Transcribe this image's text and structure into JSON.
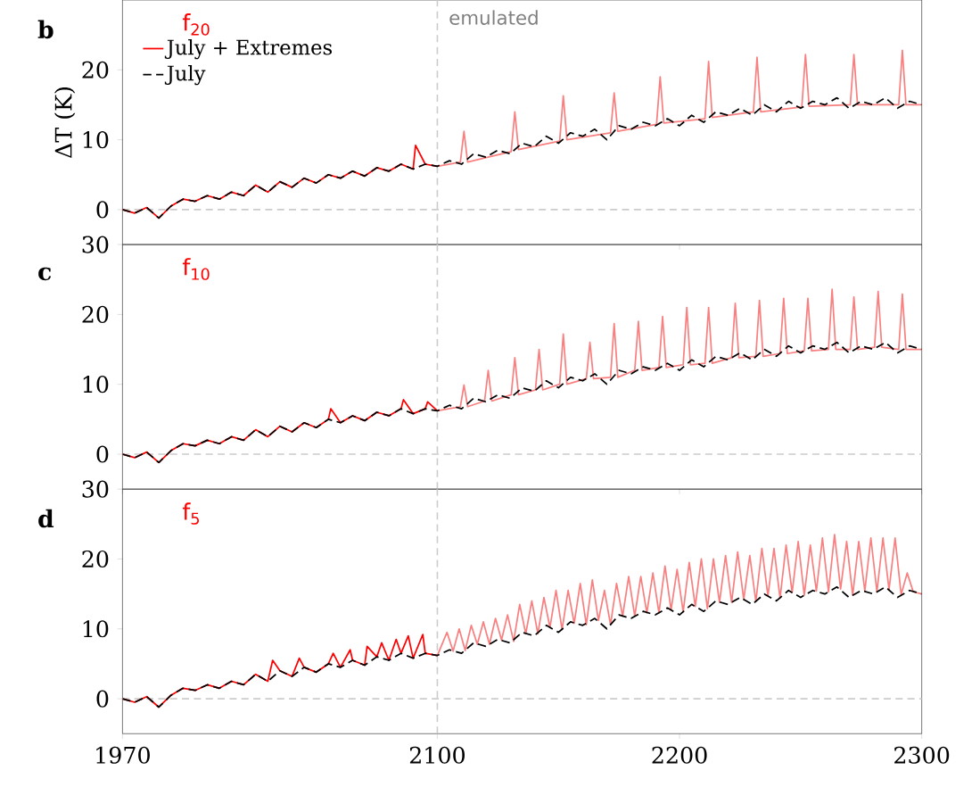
{
  "chart_data": [
    {
      "type": "line",
      "ylabel": "ΔT (K)",
      "annotations": [
        "b",
        "f$_{20}$",
        "emulated"
      ],
      "xlim": [
        1970,
        2300
      ],
      "ylim": [
        -5,
        30
      ],
      "xticks": [
        1970,
        2100,
        2200,
        2300
      ],
      "yticks": [
        0,
        10,
        20
      ],
      "tick_labels": "y",
      "legend": "top left",
      "ref_lines": [
        {
          "axis": "y",
          "value": 0,
          "color": "#cccccc",
          "line_style": "dashed"
        },
        {
          "axis": "x",
          "value": 2100,
          "color": "#cccccc",
          "line_style": "dashed"
        }
      ],
      "series": [
        {
          "name": "July + Extremes",
          "color": "#ff0000",
          "line_style": "solid",
          "x": [
            1970,
            1975,
            1980,
            1985,
            1990,
            1995,
            2000,
            2005,
            2010,
            2015,
            2020,
            2025,
            2030,
            2035,
            2040,
            2045,
            2050,
            2055,
            2060,
            2065,
            2070,
            2075,
            2080,
            2085,
            2090,
            2091,
            2095,
            2100
          ],
          "values": [
            0,
            -0.5,
            0.3,
            -1.2,
            0.5,
            1.5,
            1.2,
            2.0,
            1.5,
            2.5,
            2.0,
            3.5,
            2.5,
            4.0,
            3.2,
            4.5,
            3.8,
            5.0,
            4.5,
            5.5,
            4.8,
            6.0,
            5.5,
            6.5,
            5.8,
            9.2,
            6.5,
            6.2
          ]
        },
        {
          "color": "#f88080",
          "line_style": "solid",
          "x": [
            2100,
            2109.5,
            2111,
            2112.5,
            2130.5,
            2132,
            2133.5,
            2150.5,
            2152,
            2153.5,
            2171.5,
            2173,
            2174.5,
            2190.5,
            2192,
            2193.5,
            2210.5,
            2212,
            2213.5,
            2230.5,
            2232,
            2233.5,
            2250.5,
            2252,
            2253.5,
            2270.5,
            2272,
            2273.5,
            2290.5,
            2292,
            2293.5,
            2300
          ],
          "values": [
            6.2,
            6.8,
            11.2,
            6.8,
            8.3,
            14,
            8.6,
            9.8,
            16.3,
            10,
            11,
            16.7,
            11.2,
            12.2,
            19,
            12.4,
            13,
            21.2,
            13.2,
            14,
            21.8,
            14,
            14.7,
            22.2,
            14.8,
            15,
            22.2,
            15,
            15,
            22.8,
            15,
            15
          ]
        },
        {
          "name": "July",
          "color": "#000000",
          "line_style": "dashed",
          "x": [
            1970,
            1975,
            1980,
            1985,
            1990,
            1995,
            2000,
            2005,
            2010,
            2015,
            2020,
            2025,
            2030,
            2035,
            2040,
            2045,
            2050,
            2055,
            2060,
            2065,
            2070,
            2075,
            2080,
            2085,
            2090,
            2095,
            2100,
            2105,
            2110,
            2115,
            2120,
            2125,
            2130,
            2135,
            2140,
            2145,
            2150,
            2155,
            2160,
            2165,
            2170,
            2175,
            2180,
            2185,
            2190,
            2195,
            2200,
            2205,
            2210,
            2215,
            2220,
            2225,
            2230,
            2235,
            2240,
            2245,
            2250,
            2255,
            2260,
            2265,
            2270,
            2275,
            2280,
            2285,
            2290,
            2295,
            2300
          ],
          "values": [
            0,
            -0.5,
            0.3,
            -1.2,
            0.5,
            1.5,
            1.2,
            2.0,
            1.5,
            2.5,
            2.0,
            3.5,
            2.5,
            4.0,
            3.2,
            4.5,
            3.8,
            5.0,
            4.5,
            5.5,
            4.8,
            6.0,
            5.5,
            6.5,
            5.8,
            6.5,
            6.2,
            7.0,
            6.5,
            8.0,
            7.5,
            8.5,
            8.0,
            9.5,
            9.0,
            10.5,
            9.5,
            11.0,
            10.5,
            11.5,
            10.0,
            12.0,
            11.5,
            12.5,
            12.0,
            13.0,
            12.0,
            13.5,
            12.5,
            14.0,
            13.5,
            14.5,
            13.5,
            15.0,
            14.0,
            15.5,
            14.5,
            15.5,
            15.0,
            16.0,
            14.5,
            15.5,
            15.0,
            16.0,
            14.5,
            15.5,
            15.0
          ]
        }
      ]
    },
    {
      "type": "line",
      "annotations": [
        "c",
        "f$_{10}$"
      ],
      "xlim": [
        1970,
        2300
      ],
      "ylim": [
        -5,
        30
      ],
      "xticks": [
        1970,
        2100,
        2200,
        2300
      ],
      "yticks": [
        0,
        10,
        20,
        30
      ],
      "tick_labels": "y",
      "ref_lines": [
        {
          "axis": "y",
          "value": 0,
          "color": "#cccccc",
          "line_style": "dashed"
        },
        {
          "axis": "x",
          "value": 2100,
          "color": "#cccccc",
          "line_style": "dashed"
        }
      ],
      "series": [
        {
          "color": "#ff0000",
          "line_style": "solid",
          "x": [
            1970,
            1975,
            1980,
            1985,
            1990,
            1995,
            2000,
            2005,
            2010,
            2015,
            2020,
            2025,
            2030,
            2035,
            2040,
            2045,
            2050,
            2055,
            2056,
            2060,
            2065,
            2070,
            2075,
            2080,
            2085,
            2086,
            2090,
            2095,
            2096,
            2100
          ],
          "values": [
            0,
            -0.5,
            0.3,
            -1.2,
            0.5,
            1.5,
            1.2,
            2.0,
            1.5,
            2.5,
            2.0,
            3.5,
            2.5,
            4.0,
            3.2,
            4.5,
            3.8,
            5.0,
            6.5,
            4.5,
            5.5,
            4.8,
            6.0,
            5.5,
            6.5,
            7.8,
            5.8,
            6.5,
            7.5,
            6.2
          ]
        },
        {
          "color": "#f88080",
          "line_style": "solid",
          "x": [
            2100,
            2109.5,
            2111,
            2112.5,
            2119.5,
            2121,
            2122.5,
            2130.5,
            2132,
            2133.5,
            2140.5,
            2142,
            2143.5,
            2150.5,
            2152,
            2153.5,
            2161.5,
            2163,
            2164.5,
            2171.5,
            2173,
            2174.5,
            2181.5,
            2183,
            2184.5,
            2191.5,
            2193,
            2194.5,
            2201.5,
            2203,
            2204.5,
            2210.5,
            2212,
            2213.5,
            2221.5,
            2223,
            2224.5,
            2231.5,
            2233,
            2234.5,
            2241.5,
            2243,
            2244.5,
            2251.5,
            2253,
            2254.5,
            2261.5,
            2263,
            2264.5,
            2270.5,
            2272,
            2273.5,
            2280.5,
            2282,
            2283.5,
            2290.5,
            2292,
            2293.5,
            2300
          ],
          "values": [
            6.2,
            6.8,
            9.9,
            6.8,
            7.6,
            12,
            7.6,
            8.5,
            13.8,
            8.5,
            9.2,
            15,
            9.2,
            10,
            17.2,
            10,
            10.8,
            16,
            10.8,
            11,
            18.7,
            11,
            12,
            19,
            12,
            12.4,
            19.7,
            12.4,
            12.8,
            21,
            12.8,
            13,
            21,
            13,
            13.8,
            21.6,
            13.8,
            14,
            22,
            14,
            14.4,
            22.3,
            14.4,
            14.8,
            22.3,
            14.8,
            15,
            23.6,
            15,
            15,
            22.5,
            15,
            15.3,
            23.3,
            15.3,
            15,
            22.9,
            15,
            15
          ]
        },
        {
          "color": "#000000",
          "line_style": "dashed",
          "x": [
            1970,
            1975,
            1980,
            1985,
            1990,
            1995,
            2000,
            2005,
            2010,
            2015,
            2020,
            2025,
            2030,
            2035,
            2040,
            2045,
            2050,
            2055,
            2060,
            2065,
            2070,
            2075,
            2080,
            2085,
            2090,
            2095,
            2100,
            2105,
            2110,
            2115,
            2120,
            2125,
            2130,
            2135,
            2140,
            2145,
            2150,
            2155,
            2160,
            2165,
            2170,
            2175,
            2180,
            2185,
            2190,
            2195,
            2200,
            2205,
            2210,
            2215,
            2220,
            2225,
            2230,
            2235,
            2240,
            2245,
            2250,
            2255,
            2260,
            2265,
            2270,
            2275,
            2280,
            2285,
            2290,
            2295,
            2300
          ],
          "values": [
            0,
            -0.5,
            0.3,
            -1.2,
            0.5,
            1.5,
            1.2,
            2.0,
            1.5,
            2.5,
            2.0,
            3.5,
            2.5,
            4.0,
            3.2,
            4.5,
            3.8,
            5.0,
            4.5,
            5.5,
            4.8,
            6.0,
            5.5,
            6.5,
            5.8,
            6.5,
            6.2,
            7.0,
            6.5,
            8.0,
            7.5,
            8.5,
            8.0,
            9.5,
            9.0,
            10.5,
            9.5,
            11.0,
            10.5,
            11.5,
            10.0,
            12.0,
            11.5,
            12.5,
            12.0,
            13.0,
            12.0,
            13.5,
            12.5,
            14.0,
            13.5,
            14.5,
            13.5,
            15.0,
            14.0,
            15.5,
            14.5,
            15.5,
            15.0,
            16.0,
            14.5,
            15.5,
            15.0,
            16.0,
            14.5,
            15.5,
            15.0
          ]
        }
      ]
    },
    {
      "type": "line",
      "annotations": [
        "d",
        "f$_{5}$"
      ],
      "xlim": [
        1970,
        2300
      ],
      "ylim": [
        -5,
        30
      ],
      "xticks": [
        1970,
        2100,
        2200,
        2300
      ],
      "yticks": [
        0,
        10,
        20,
        30
      ],
      "ref_lines": [
        {
          "axis": "y",
          "value": 0,
          "color": "#cccccc",
          "line_style": "dashed"
        },
        {
          "axis": "x",
          "value": 2100,
          "color": "#cccccc",
          "line_style": "dashed"
        }
      ],
      "series": [
        {
          "color": "#ff0000",
          "line_style": "solid",
          "x": [
            1970,
            1975,
            1980,
            1985,
            1990,
            1995,
            2000,
            2005,
            2010,
            2015,
            2020,
            2025,
            2030,
            2032,
            2035,
            2040,
            2043,
            2045,
            2050,
            2055,
            2057,
            2060,
            2064,
            2065,
            2070,
            2071,
            2075,
            2077,
            2080,
            2083,
            2085,
            2088,
            2090,
            2094,
            2095,
            2100
          ],
          "values": [
            0,
            -0.5,
            0.3,
            -1.2,
            0.5,
            1.5,
            1.2,
            2.0,
            1.5,
            2.5,
            2.0,
            3.5,
            2.5,
            5.5,
            4.0,
            3.2,
            5.8,
            4.5,
            3.8,
            5.0,
            6.5,
            4.5,
            7,
            5.5,
            4.8,
            7.5,
            6.0,
            8,
            5.5,
            8.5,
            6.5,
            9,
            5.8,
            9.2,
            6.5,
            6.2
          ]
        },
        {
          "color": "#f88080",
          "line_style": "solid",
          "x": [
            2100,
            2104,
            2106.5,
            2109,
            2111.5,
            2114,
            2116.5,
            2119,
            2121.5,
            2124,
            2126.5,
            2129,
            2131.5,
            2134,
            2136.5,
            2139,
            2141.5,
            2144,
            2146.5,
            2149,
            2151.5,
            2154,
            2156.5,
            2159,
            2161.5,
            2164,
            2166.5,
            2169,
            2171.5,
            2174,
            2176.5,
            2179,
            2181.5,
            2184,
            2186.5,
            2189,
            2191.5,
            2194,
            2196.5,
            2199,
            2201.5,
            2204,
            2206.5,
            2209,
            2211.5,
            2214,
            2216.5,
            2219,
            2221.5,
            2224,
            2226.5,
            2229,
            2231.5,
            2234,
            2236.5,
            2239,
            2241.5,
            2244,
            2246.5,
            2249,
            2251.5,
            2254,
            2256.5,
            2259,
            2261.5,
            2264,
            2266.5,
            2269,
            2271.5,
            2274,
            2276.5,
            2279,
            2281.5,
            2284,
            2286.5,
            2289,
            2291.5,
            2294,
            2296.5,
            2300
          ],
          "values": [
            6.2,
            9.5,
            6.8,
            10,
            6.9,
            10.5,
            7.8,
            11,
            7.8,
            11.5,
            8.4,
            12,
            8.2,
            13.5,
            9.3,
            14,
            9.3,
            14.5,
            10.2,
            15.5,
            9.9,
            15.5,
            10.8,
            16.5,
            10.6,
            17,
            11.2,
            15.5,
            10.6,
            16.5,
            11.8,
            17.5,
            11.8,
            17.5,
            12.3,
            18,
            12.3,
            19,
            12.7,
            18.5,
            12.4,
            19.5,
            13.2,
            20,
            12.9,
            20,
            13.8,
            20.5,
            13.8,
            21,
            14.2,
            20.5,
            13.9,
            21.5,
            14.7,
            21.5,
            14.4,
            22,
            15.2,
            22.5,
            14.8,
            22,
            15.4,
            23,
            15.3,
            23.5,
            15.7,
            22.5,
            14.8,
            22.5,
            15.4,
            23,
            15.3,
            23,
            15.6,
            23,
            14.9,
            18,
            15.3,
            15
          ]
        },
        {
          "color": "#000000",
          "line_style": "dashed",
          "x": [
            1970,
            1975,
            1980,
            1985,
            1990,
            1995,
            2000,
            2005,
            2010,
            2015,
            2020,
            2025,
            2030,
            2035,
            2040,
            2045,
            2050,
            2055,
            2060,
            2065,
            2070,
            2075,
            2080,
            2085,
            2090,
            2095,
            2100,
            2105,
            2110,
            2115,
            2120,
            2125,
            2130,
            2135,
            2140,
            2145,
            2150,
            2155,
            2160,
            2165,
            2170,
            2175,
            2180,
            2185,
            2190,
            2195,
            2200,
            2205,
            2210,
            2215,
            2220,
            2225,
            2230,
            2235,
            2240,
            2245,
            2250,
            2255,
            2260,
            2265,
            2270,
            2275,
            2280,
            2285,
            2290,
            2295,
            2300
          ],
          "values": [
            0,
            -0.5,
            0.3,
            -1.2,
            0.5,
            1.5,
            1.2,
            2.0,
            1.5,
            2.5,
            2.0,
            3.5,
            2.5,
            4.0,
            3.2,
            4.5,
            3.8,
            5.0,
            4.5,
            5.5,
            4.8,
            6.0,
            5.5,
            6.5,
            5.8,
            6.5,
            6.2,
            7.0,
            6.5,
            8.0,
            7.5,
            8.5,
            8.0,
            9.5,
            9.0,
            10.5,
            9.5,
            11.0,
            10.5,
            11.5,
            10.0,
            12.0,
            11.5,
            12.5,
            12.0,
            13.0,
            12.0,
            13.5,
            12.5,
            14.0,
            13.5,
            14.5,
            13.5,
            15.0,
            14.0,
            15.5,
            14.5,
            15.5,
            15.0,
            16.0,
            14.5,
            15.5,
            15.0,
            16.0,
            14.5,
            15.5,
            15.0
          ]
        }
      ]
    }
  ]
}
